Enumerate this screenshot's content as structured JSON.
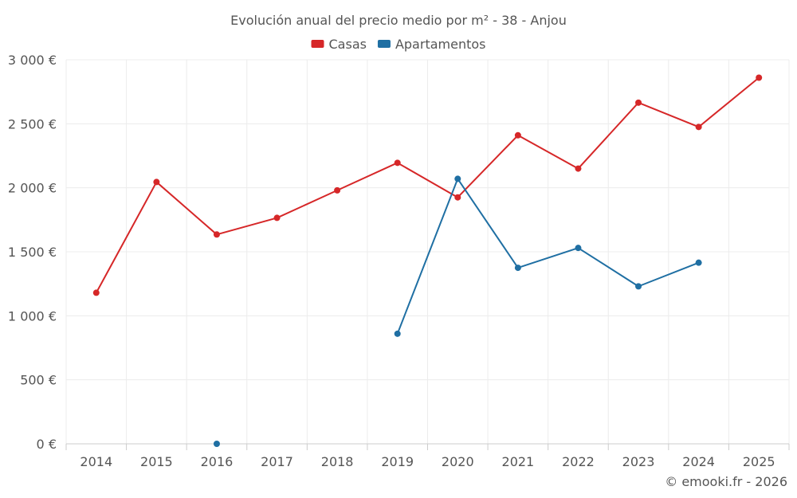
{
  "chart_data": {
    "type": "line",
    "title": "Evolución anual del precio medio por m² - 38 - Anjou",
    "categories": [
      "2014",
      "2015",
      "2016",
      "2017",
      "2018",
      "2019",
      "2020",
      "2021",
      "2022",
      "2023",
      "2024",
      "2025"
    ],
    "series": [
      {
        "name": "Casas",
        "color": "#d62728",
        "values": [
          1180,
          2045,
          1635,
          1765,
          1980,
          2195,
          1925,
          2410,
          2150,
          2665,
          2475,
          2860
        ]
      },
      {
        "name": "Apartamentos",
        "color": "#1f6fa3",
        "values": [
          null,
          null,
          0,
          null,
          null,
          860,
          2070,
          1375,
          1530,
          1230,
          1415,
          null
        ]
      }
    ],
    "ylim": [
      0,
      3000
    ],
    "yticks": [
      0,
      500,
      1000,
      1500,
      2000,
      2500,
      3000
    ],
    "ytick_labels": [
      "0 €",
      "500 €",
      "1 000 €",
      "1 500 €",
      "2 000 €",
      "2 500 €",
      "3 000 €"
    ],
    "xlabel": "",
    "ylabel": "",
    "legend_position": "top-center",
    "grid": true
  },
  "credit": "© emooki.fr - 2026"
}
